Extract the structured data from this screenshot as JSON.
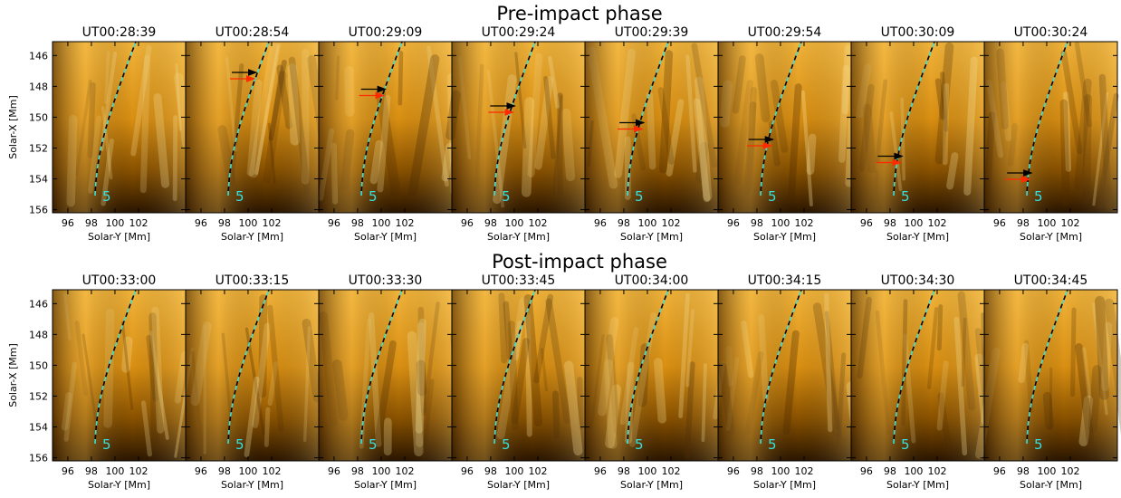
{
  "rows": [
    {
      "title": "Pre-impact phase",
      "panels": [
        "UT00:28:39",
        "UT00:28:54",
        "UT00:29:09",
        "UT00:29:24",
        "UT00:29:39",
        "UT00:29:54",
        "UT00:30:09",
        "UT00:30:24"
      ]
    },
    {
      "title": "Post-impact phase",
      "panels": [
        "UT00:33:00",
        "UT00:33:15",
        "UT00:33:30",
        "UT00:33:45",
        "UT00:34:00",
        "UT00:34:15",
        "UT00:34:30",
        "UT00:34:45"
      ]
    }
  ],
  "axes": {
    "xlabel": "Solar-Y [Mm]",
    "ylabel": "Solar-X [Mm]",
    "xticks": [
      96,
      98,
      100,
      102
    ],
    "yticks": [
      146,
      148,
      150,
      152,
      154,
      156
    ],
    "xlim": [
      94.7,
      106
    ],
    "ylim": [
      145.1,
      156.2
    ]
  },
  "loop_label": "5"
}
